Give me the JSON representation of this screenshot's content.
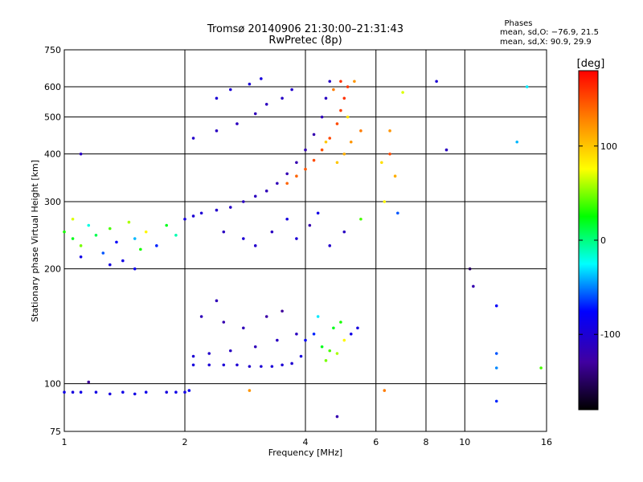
{
  "chart_data": {
    "type": "scatter",
    "title": "Tromsø 20140906 21:30:00–21:31:43",
    "subtitle": "RwPretec (8p)",
    "xlabel": "Frequency [MHz]",
    "ylabel": "Stationary phase Virtual Height [km]",
    "x_scale": "log",
    "y_scale": "log",
    "xlim": [
      1,
      16
    ],
    "ylim": [
      75,
      750
    ],
    "x_ticks": [
      1,
      2,
      4,
      6,
      8,
      10,
      16
    ],
    "x_tick_labels": [
      "1",
      "2",
      "4",
      "6",
      "8",
      "10",
      "16"
    ],
    "y_ticks": [
      75,
      100,
      200,
      300,
      400,
      500,
      600,
      750
    ],
    "y_tick_labels": [
      "75",
      "100",
      "200",
      "300",
      "400",
      "500",
      "600",
      "750"
    ],
    "grid": true,
    "stats": {
      "heading": "Phases",
      "line_o": "mean, sd,O: −76.9, 21.5",
      "line_x": "mean, sd,X:  90.9, 29.9"
    },
    "colorbar": {
      "label": "[deg]",
      "range": [
        -180,
        180
      ],
      "ticks": [
        100,
        0,
        -100
      ],
      "tick_labels": [
        "100",
        "0",
        "-100"
      ],
      "colors": [
        "#ff0000",
        "#ff8000",
        "#ffff00",
        "#00ff00",
        "#00ffff",
        "#0000ff",
        "#4000a0",
        "#000000"
      ]
    },
    "series": [
      {
        "points": [
          [
            1.0,
            95,
            -90
          ],
          [
            1.05,
            95,
            -95
          ],
          [
            1.1,
            95,
            -90
          ],
          [
            1.2,
            95,
            -92
          ],
          [
            1.3,
            94,
            -95
          ],
          [
            1.4,
            95,
            -90
          ],
          [
            1.5,
            94,
            -92
          ],
          [
            1.6,
            95,
            -88
          ],
          [
            1.8,
            95,
            -95
          ],
          [
            1.9,
            95,
            -90
          ],
          [
            2.0,
            95,
            -92
          ],
          [
            2.05,
            96,
            -85
          ]
        ]
      },
      {
        "points": [
          [
            2.1,
            112,
            -95
          ],
          [
            2.3,
            112,
            -100
          ],
          [
            2.5,
            112,
            -98
          ],
          [
            2.7,
            112,
            -100
          ],
          [
            2.9,
            111,
            -105
          ],
          [
            3.1,
            111,
            -100
          ],
          [
            3.3,
            111,
            -98
          ],
          [
            3.5,
            112,
            -100
          ],
          [
            3.7,
            113,
            -102
          ],
          [
            3.9,
            118,
            -95
          ]
        ]
      },
      {
        "points": [
          [
            2.1,
            118,
            -100
          ],
          [
            2.3,
            120,
            -105
          ],
          [
            2.6,
            122,
            -110
          ],
          [
            3.0,
            125,
            -115
          ],
          [
            3.4,
            130,
            -110
          ],
          [
            3.8,
            135,
            -112
          ],
          [
            2.2,
            150,
            -115
          ],
          [
            2.5,
            145,
            -120
          ],
          [
            2.8,
            140,
            -115
          ],
          [
            3.2,
            150,
            -125
          ],
          [
            3.5,
            155,
            -130
          ],
          [
            2.4,
            165,
            -115
          ]
        ]
      },
      {
        "points": [
          [
            4.0,
            130,
            -80
          ],
          [
            4.2,
            135,
            -70
          ],
          [
            4.4,
            125,
            20
          ],
          [
            4.6,
            122,
            40
          ],
          [
            4.8,
            120,
            60
          ],
          [
            5.0,
            130,
            80
          ],
          [
            4.5,
            115,
            50
          ],
          [
            4.7,
            140,
            20
          ],
          [
            5.2,
            135,
            -90
          ],
          [
            5.4,
            140,
            -95
          ],
          [
            4.3,
            150,
            -30
          ],
          [
            4.9,
            145,
            30
          ]
        ]
      },
      {
        "points": [
          [
            1.0,
            250,
            30
          ],
          [
            1.05,
            240,
            20
          ],
          [
            1.1,
            230,
            50
          ],
          [
            1.15,
            260,
            -20
          ],
          [
            1.2,
            245,
            10
          ],
          [
            1.25,
            220,
            -60
          ],
          [
            1.3,
            255,
            40
          ],
          [
            1.35,
            235,
            -80
          ],
          [
            1.4,
            210,
            -90
          ],
          [
            1.45,
            265,
            60
          ],
          [
            1.5,
            240,
            -40
          ],
          [
            1.55,
            225,
            30
          ],
          [
            1.6,
            250,
            80
          ],
          [
            1.7,
            230,
            -70
          ],
          [
            1.8,
            260,
            20
          ],
          [
            1.9,
            245,
            -10
          ],
          [
            1.1,
            215,
            -90
          ],
          [
            1.3,
            205,
            -95
          ],
          [
            1.05,
            270,
            70
          ],
          [
            1.5,
            200,
            -85
          ]
        ]
      },
      {
        "points": [
          [
            2.0,
            270,
            -95
          ],
          [
            2.1,
            275,
            -100
          ],
          [
            2.2,
            280,
            -100
          ],
          [
            2.4,
            285,
            -105
          ],
          [
            2.6,
            290,
            -108
          ],
          [
            2.8,
            300,
            -110
          ],
          [
            3.0,
            310,
            -112
          ],
          [
            3.2,
            320,
            -115
          ],
          [
            3.4,
            335,
            -115
          ],
          [
            3.6,
            355,
            -118
          ],
          [
            3.8,
            380,
            -120
          ],
          [
            4.0,
            410,
            -118
          ],
          [
            4.2,
            450,
            -120
          ],
          [
            4.4,
            500,
            -115
          ],
          [
            4.5,
            560,
            -110
          ],
          [
            4.6,
            620,
            -108
          ]
        ]
      },
      {
        "points": [
          [
            2.1,
            440,
            -105
          ],
          [
            2.4,
            460,
            -110
          ],
          [
            2.7,
            480,
            -112
          ],
          [
            3.0,
            510,
            -115
          ],
          [
            3.2,
            540,
            -112
          ],
          [
            3.5,
            560,
            -108
          ],
          [
            3.7,
            590,
            -105
          ],
          [
            2.6,
            590,
            -100
          ],
          [
            2.9,
            610,
            -98
          ],
          [
            3.1,
            630,
            -95
          ],
          [
            2.4,
            560,
            -100
          ]
        ]
      },
      {
        "points": [
          [
            3.8,
            350,
            140
          ],
          [
            4.0,
            365,
            145
          ],
          [
            4.2,
            385,
            150
          ],
          [
            4.4,
            410,
            148
          ],
          [
            4.6,
            440,
            152
          ],
          [
            4.8,
            480,
            150
          ],
          [
            4.9,
            520,
            155
          ],
          [
            5.0,
            560,
            160
          ],
          [
            5.1,
            600,
            158
          ],
          [
            3.6,
            335,
            140
          ],
          [
            4.5,
            430,
            100
          ]
        ]
      },
      {
        "points": [
          [
            4.8,
            380,
            100
          ],
          [
            5.0,
            400,
            110
          ],
          [
            5.2,
            430,
            120
          ],
          [
            5.5,
            460,
            130
          ],
          [
            5.1,
            500,
            90
          ],
          [
            4.9,
            620,
            160
          ],
          [
            4.7,
            590,
            130
          ],
          [
            5.3,
            620,
            120
          ]
        ]
      },
      {
        "points": [
          [
            6.2,
            380,
            90
          ],
          [
            6.5,
            400,
            150
          ],
          [
            6.7,
            350,
            110
          ],
          [
            6.3,
            300,
            80
          ],
          [
            6.8,
            280,
            -60
          ],
          [
            6.5,
            460,
            120
          ],
          [
            7.0,
            580,
            70
          ]
        ]
      },
      {
        "points": [
          [
            8.5,
            620,
            -100
          ],
          [
            9.0,
            410,
            -110
          ],
          [
            10.3,
            200,
            -150
          ],
          [
            10.5,
            180,
            -120
          ],
          [
            12.0,
            160,
            -80
          ],
          [
            12.0,
            120,
            -60
          ],
          [
            12.0,
            110,
            -50
          ],
          [
            12.0,
            90,
            -70
          ],
          [
            13.5,
            430,
            -40
          ],
          [
            14.3,
            600,
            -30
          ],
          [
            15.5,
            110,
            40
          ]
        ]
      },
      {
        "points": [
          [
            2.5,
            250,
            -110
          ],
          [
            2.8,
            240,
            -100
          ],
          [
            3.0,
            230,
            -105
          ],
          [
            3.3,
            250,
            -110
          ],
          [
            3.6,
            270,
            -95
          ],
          [
            3.8,
            240,
            -100
          ],
          [
            4.1,
            260,
            -120
          ],
          [
            4.3,
            280,
            -90
          ],
          [
            4.6,
            230,
            -105
          ],
          [
            5.0,
            250,
            -110
          ],
          [
            5.5,
            270,
            40
          ]
        ]
      },
      {
        "points": [
          [
            1.1,
            400,
            -110
          ],
          [
            1.15,
            101,
            -130
          ],
          [
            2.9,
            96,
            120
          ],
          [
            6.3,
            96,
            130
          ],
          [
            4.8,
            82,
            -120
          ]
        ]
      }
    ]
  }
}
